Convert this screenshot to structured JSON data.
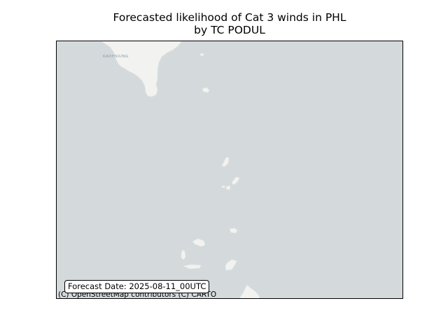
{
  "title": {
    "line1": "Forecasted likelihood of Cat 3 winds in PHL",
    "line2": "by TC PODUL"
  },
  "map": {
    "city_label": "KAOHSIUNG",
    "attribution": "(C) OpenStreetMap contributors (C) CARTO",
    "forecast_date": "Forecast Date: 2025-08-11_00UTC",
    "colors": {
      "water": "#d4dadc",
      "land": "#f2f3f0",
      "city_label": "#8899a6",
      "frame": "#000000"
    },
    "basemap": "CARTO Positron (no labels)"
  }
}
